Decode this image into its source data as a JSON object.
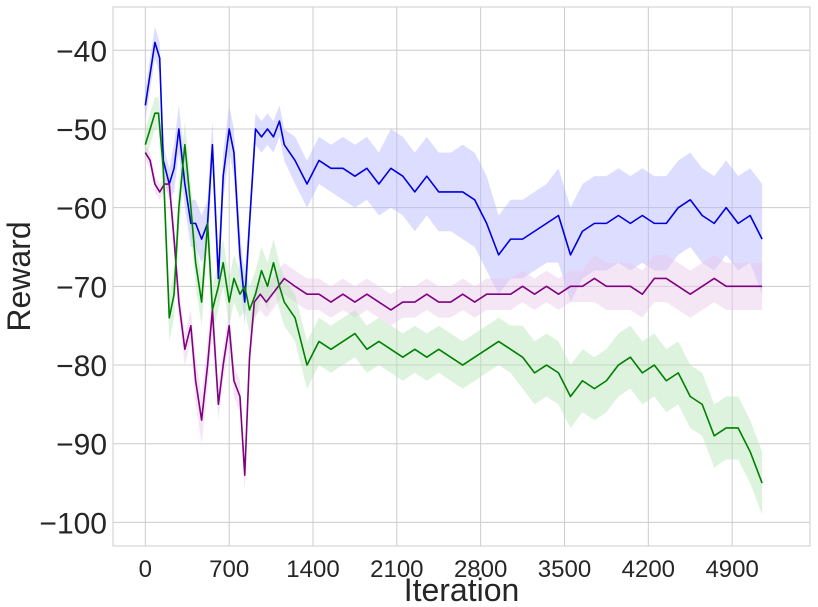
{
  "chart_data": {
    "type": "line",
    "title": "",
    "xlabel": "Iteration",
    "ylabel": "Reward",
    "xlim": [
      -270,
      5550
    ],
    "ylim": [
      -103,
      -34.5
    ],
    "xticks": [
      0,
      700,
      1400,
      2100,
      2800,
      3500,
      4200,
      4900
    ],
    "xtick_labels": [
      "0",
      "700",
      "1400",
      "2100",
      "2800",
      "3500",
      "4200",
      "4900"
    ],
    "yticks": [
      -40,
      -50,
      -60,
      -70,
      -80,
      -90,
      -100
    ],
    "ytick_labels": [
      "−40",
      "−50",
      "−60",
      "−70",
      "−80",
      "−90",
      "−100"
    ],
    "grid": true,
    "legend": "none",
    "series": [
      {
        "color": "#0000dd",
        "band_color": "#b4b4ff",
        "x": [
          0,
          40,
          80,
          120,
          150,
          200,
          240,
          280,
          330,
          380,
          420,
          470,
          520,
          560,
          610,
          650,
          700,
          740,
          790,
          830,
          870,
          920,
          970,
          1020,
          1070,
          1120,
          1160,
          1250,
          1350,
          1450,
          1550,
          1650,
          1750,
          1850,
          1950,
          2050,
          2150,
          2250,
          2350,
          2450,
          2550,
          2650,
          2750,
          2850,
          2950,
          3050,
          3150,
          3250,
          3350,
          3450,
          3550,
          3650,
          3750,
          3850,
          3950,
          4050,
          4150,
          4250,
          4350,
          4450,
          4550,
          4650,
          4750,
          4850,
          4950,
          5050,
          5150
        ],
        "y": [
          -47,
          -43,
          -39,
          -41,
          -54,
          -57,
          -55,
          -50,
          -57,
          -62,
          -62,
          -64,
          -62,
          -52,
          -69,
          -56,
          -50,
          -53,
          -66,
          -72,
          -62,
          -50,
          -51,
          -50,
          -51,
          -49,
          -52,
          -54,
          -57,
          -54,
          -55,
          -55,
          -56,
          -55,
          -57,
          -55,
          -56,
          -58,
          -56,
          -58,
          -58,
          -58,
          -59,
          -62,
          -66,
          -64,
          -64,
          -63,
          -62,
          -61,
          -66,
          -63,
          -62,
          -62,
          -61,
          -62,
          -61,
          -62,
          -62,
          -60,
          -59,
          -61,
          -62,
          -60,
          -62,
          -61,
          -64
        ],
        "band": [
          2,
          2,
          2,
          2,
          2,
          2,
          3,
          3,
          3,
          3,
          3,
          3,
          3,
          3,
          3,
          3,
          3,
          3,
          3,
          3,
          2,
          2,
          2,
          2,
          2,
          2,
          2,
          3,
          3,
          3,
          3,
          4,
          4,
          4,
          4,
          5,
          5,
          5,
          5,
          5,
          5,
          6,
          6,
          6,
          5,
          5,
          5,
          5,
          5,
          6,
          6,
          6,
          6,
          6,
          6,
          6,
          6,
          6,
          6,
          6,
          6,
          6,
          6,
          6,
          6,
          6,
          7
        ]
      },
      {
        "color": "#800080",
        "band_color": "#e8c8ec",
        "x": [
          0,
          40,
          80,
          120,
          160,
          200,
          240,
          280,
          330,
          380,
          420,
          470,
          520,
          560,
          610,
          650,
          700,
          740,
          790,
          830,
          870,
          910,
          960,
          1010,
          1060,
          1110,
          1160,
          1250,
          1350,
          1450,
          1550,
          1650,
          1750,
          1850,
          1950,
          2050,
          2150,
          2250,
          2350,
          2450,
          2550,
          2650,
          2750,
          2850,
          2950,
          3050,
          3150,
          3250,
          3350,
          3450,
          3550,
          3650,
          3750,
          3850,
          3950,
          4050,
          4150,
          4250,
          4350,
          4450,
          4550,
          4650,
          4750,
          4850,
          4950,
          5050,
          5150
        ],
        "y": [
          -53,
          -54,
          -57,
          -58,
          -57,
          -57,
          -64,
          -72,
          -78,
          -75,
          -82,
          -87,
          -80,
          -73,
          -85,
          -80,
          -75,
          -82,
          -84,
          -94,
          -79,
          -72,
          -71,
          -72,
          -71,
          -70,
          -69,
          -70,
          -71,
          -71,
          -72,
          -71,
          -72,
          -71,
          -72,
          -73,
          -72,
          -72,
          -71,
          -72,
          -72,
          -71,
          -72,
          -71,
          -71,
          -71,
          -70,
          -71,
          -70,
          -71,
          -70,
          -70,
          -69,
          -70,
          -70,
          -70,
          -71,
          -69,
          -69,
          -70,
          -71,
          -70,
          -69,
          -70,
          -70,
          -70,
          -70
        ],
        "band": [
          1,
          1,
          1,
          1,
          1,
          1,
          2,
          2,
          2,
          2,
          3,
          3,
          3,
          3,
          2,
          2,
          2,
          2,
          2,
          2,
          2,
          2,
          2,
          2,
          2,
          2,
          2,
          2,
          2,
          2,
          2,
          2,
          2,
          2,
          2,
          2,
          2,
          2,
          2,
          2,
          2,
          2,
          2,
          2,
          2,
          2,
          2,
          2,
          2,
          2,
          2,
          2,
          3,
          3,
          3,
          3,
          3,
          3,
          3,
          3,
          3,
          3,
          3,
          3,
          3,
          3,
          3
        ]
      },
      {
        "color": "#008000",
        "band_color": "#b4e4b4",
        "x": [
          0,
          40,
          80,
          110,
          150,
          200,
          240,
          280,
          330,
          380,
          420,
          470,
          520,
          560,
          610,
          650,
          700,
          740,
          790,
          830,
          870,
          920,
          970,
          1020,
          1070,
          1120,
          1160,
          1250,
          1350,
          1450,
          1550,
          1650,
          1750,
          1850,
          1950,
          2050,
          2150,
          2250,
          2350,
          2450,
          2550,
          2650,
          2750,
          2850,
          2950,
          3050,
          3150,
          3250,
          3350,
          3450,
          3550,
          3650,
          3750,
          3850,
          3950,
          4050,
          4150,
          4250,
          4350,
          4450,
          4550,
          4650,
          4750,
          4850,
          4950,
          5050,
          5150
        ],
        "y": [
          -52,
          -50,
          -48,
          -48,
          -55,
          -74,
          -71,
          -60,
          -52,
          -60,
          -67,
          -72,
          -62,
          -73,
          -70,
          -67,
          -72,
          -69,
          -71,
          -70,
          -73,
          -71,
          -68,
          -70,
          -67,
          -70,
          -72,
          -74,
          -80,
          -77,
          -78,
          -77,
          -76,
          -78,
          -77,
          -78,
          -79,
          -78,
          -79,
          -78,
          -79,
          -80,
          -79,
          -78,
          -77,
          -78,
          -79,
          -81,
          -80,
          -81,
          -84,
          -82,
          -83,
          -82,
          -80,
          -79,
          -81,
          -80,
          -82,
          -81,
          -84,
          -85,
          -89,
          -88,
          -88,
          -91,
          -95
        ],
        "band": [
          2,
          2,
          2,
          2,
          3,
          3,
          3,
          3,
          3,
          3,
          3,
          3,
          3,
          3,
          3,
          3,
          3,
          3,
          3,
          3,
          3,
          3,
          3,
          3,
          3,
          3,
          3,
          3,
          3,
          3,
          3,
          3,
          3,
          3,
          3,
          3,
          3,
          3,
          3,
          3,
          3,
          3,
          3,
          3,
          3,
          3,
          4,
          4,
          4,
          4,
          4,
          4,
          4,
          4,
          4,
          4,
          4,
          4,
          4,
          4,
          4,
          4,
          4,
          4,
          4,
          4,
          4
        ]
      }
    ]
  }
}
